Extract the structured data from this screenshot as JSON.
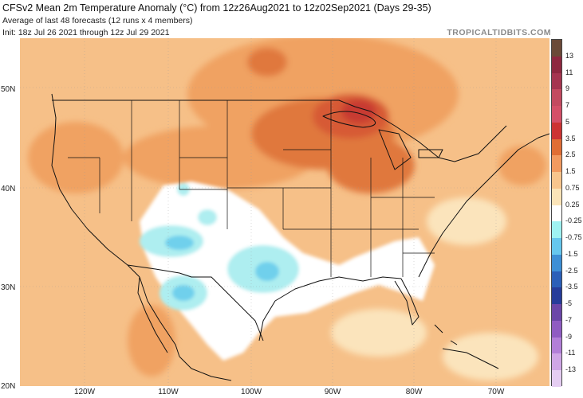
{
  "header": {
    "title": "CFSv2 Mean 2m Temperature Anomaly (°C) from 12z26Aug2021 to 12z02Sep2021 (Days 29-35)",
    "subtitle": "Average of last 48 forecasts (12 runs x 4 members)",
    "init": "Init: 18z Jul 26 2021 through 12z Jul 29 2021",
    "credit": "TROPICALTIDBITS.COM"
  },
  "axes": {
    "lat": [
      "50N",
      "40N",
      "30N",
      "20N"
    ],
    "lon": [
      "120W",
      "110W",
      "100W",
      "90W",
      "80W",
      "70W"
    ]
  },
  "legend": {
    "labels": [
      "13",
      "11",
      "9",
      "7",
      "5",
      "3.5",
      "2.5",
      "1.5",
      "0.75",
      "0.25",
      "-0.25",
      "-0.75",
      "-1.5",
      "-2.5",
      "-3.5",
      "-5",
      "-7",
      "-9",
      "-11",
      "-13"
    ],
    "colors": [
      "#6b4a38",
      "#8e2840",
      "#a53550",
      "#c34a60",
      "#d45068",
      "#cc3333",
      "#e06e35",
      "#f29a60",
      "#f8c58d",
      "#fbe4b8",
      "#ffffff",
      "#9ff2f2",
      "#66c7ee",
      "#3d8fd6",
      "#2b5fb8",
      "#263c9a",
      "#6b46a8",
      "#8f5cc2",
      "#b27fd8",
      "#cfa6e6",
      "#e5cdf2"
    ]
  },
  "colors": {
    "base": "#f6c088",
    "warm": "#f0a262",
    "hot": "#e0783e",
    "hotter": "#d75a35",
    "hottest": "#c83a30",
    "neutral": "#fbe4bc",
    "cool": "#aeeef0",
    "cold": "#6fd0ec",
    "white": "#ffffff",
    "border": "#111111",
    "lines": "#9a9a9a"
  }
}
